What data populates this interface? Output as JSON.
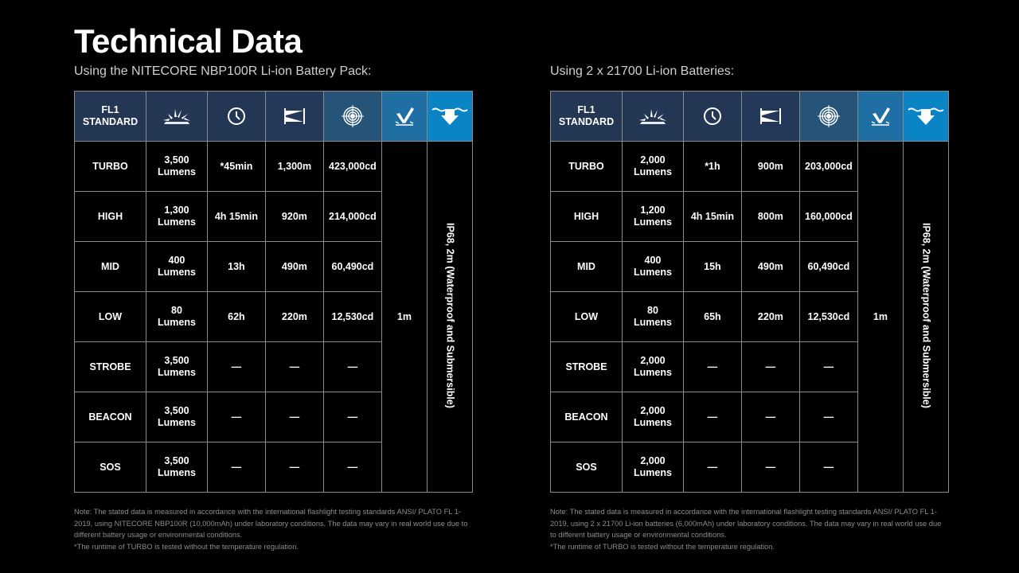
{
  "title": "Technical Data",
  "colors": {
    "header_dark": "#233654",
    "header_mid": "#25527a",
    "header_light": "#0a84c4"
  },
  "header": {
    "standard_label": "FL1 STANDARD",
    "icons": [
      "brightness-icon",
      "runtime-clock-icon",
      "beam-distance-icon",
      "peak-intensity-icon",
      "impact-resistance-icon",
      "waterproof-icon"
    ]
  },
  "tables": [
    {
      "subtitle": "Using the NITECORE NBP100R Li-ion Battery Pack:",
      "impact": "1m",
      "waterproof": "IP68, 2m (Waterproof and Submersible)",
      "rows": [
        {
          "mode": "TURBO",
          "output": "3,500 Lumens",
          "runtime": "*45min",
          "distance": "1,300m",
          "intensity": "423,000cd"
        },
        {
          "mode": "HIGH",
          "output": "1,300 Lumens",
          "runtime": "4h 15min",
          "distance": "920m",
          "intensity": "214,000cd"
        },
        {
          "mode": "MID",
          "output": "400 Lumens",
          "runtime": "13h",
          "distance": "490m",
          "intensity": "60,490cd"
        },
        {
          "mode": "LOW",
          "output": "80 Lumens",
          "runtime": "62h",
          "distance": "220m",
          "intensity": "12,530cd"
        },
        {
          "mode": "STROBE",
          "output": "3,500 Lumens",
          "runtime": "—",
          "distance": "—",
          "intensity": "—"
        },
        {
          "mode": "BEACON",
          "output": "3,500 Lumens",
          "runtime": "—",
          "distance": "—",
          "intensity": "—"
        },
        {
          "mode": "SOS",
          "output": "3,500 Lumens",
          "runtime": "—",
          "distance": "—",
          "intensity": "—"
        }
      ],
      "note": "Note:  The stated data is measured in accordance with the international flashlight testing standards ANSI/ PLATO FL 1-2019, using NITECORE NBP100R (10,000mAh) under laboratory conditions. The data may vary in real world use due to different battery usage or environmental conditions.",
      "footnote": "*The runtime of TURBO is tested without the temperature regulation."
    },
    {
      "subtitle": "Using 2 x 21700 Li-ion Batteries:",
      "impact": "1m",
      "waterproof": "IP68, 2m (Waterproof and Submersible)",
      "rows": [
        {
          "mode": "TURBO",
          "output": "2,000 Lumens",
          "runtime": "*1h",
          "distance": "900m",
          "intensity": "203,000cd"
        },
        {
          "mode": "HIGH",
          "output": "1,200 Lumens",
          "runtime": "4h 15min",
          "distance": "800m",
          "intensity": "160,000cd"
        },
        {
          "mode": "MID",
          "output": "400 Lumens",
          "runtime": "15h",
          "distance": "490m",
          "intensity": "60,490cd"
        },
        {
          "mode": "LOW",
          "output": "80 Lumens",
          "runtime": "65h",
          "distance": "220m",
          "intensity": "12,530cd"
        },
        {
          "mode": "STROBE",
          "output": "2,000 Lumens",
          "runtime": "—",
          "distance": "—",
          "intensity": "—"
        },
        {
          "mode": "BEACON",
          "output": "2,000 Lumens",
          "runtime": "—",
          "distance": "—",
          "intensity": "—"
        },
        {
          "mode": "SOS",
          "output": "2,000 Lumens",
          "runtime": "—",
          "distance": "—",
          "intensity": "—"
        }
      ],
      "note": "Note:  The stated data is measured in accordance with the international flashlight testing standards ANSI/ PLATO FL 1-2019, using 2 x 21700 Li-ion batteries (6,000mAh) under laboratory conditions. The data may vary in real world use due to different battery usage or environmental conditions.",
      "footnote": "*The runtime of TURBO is tested without the temperature regulation."
    }
  ]
}
